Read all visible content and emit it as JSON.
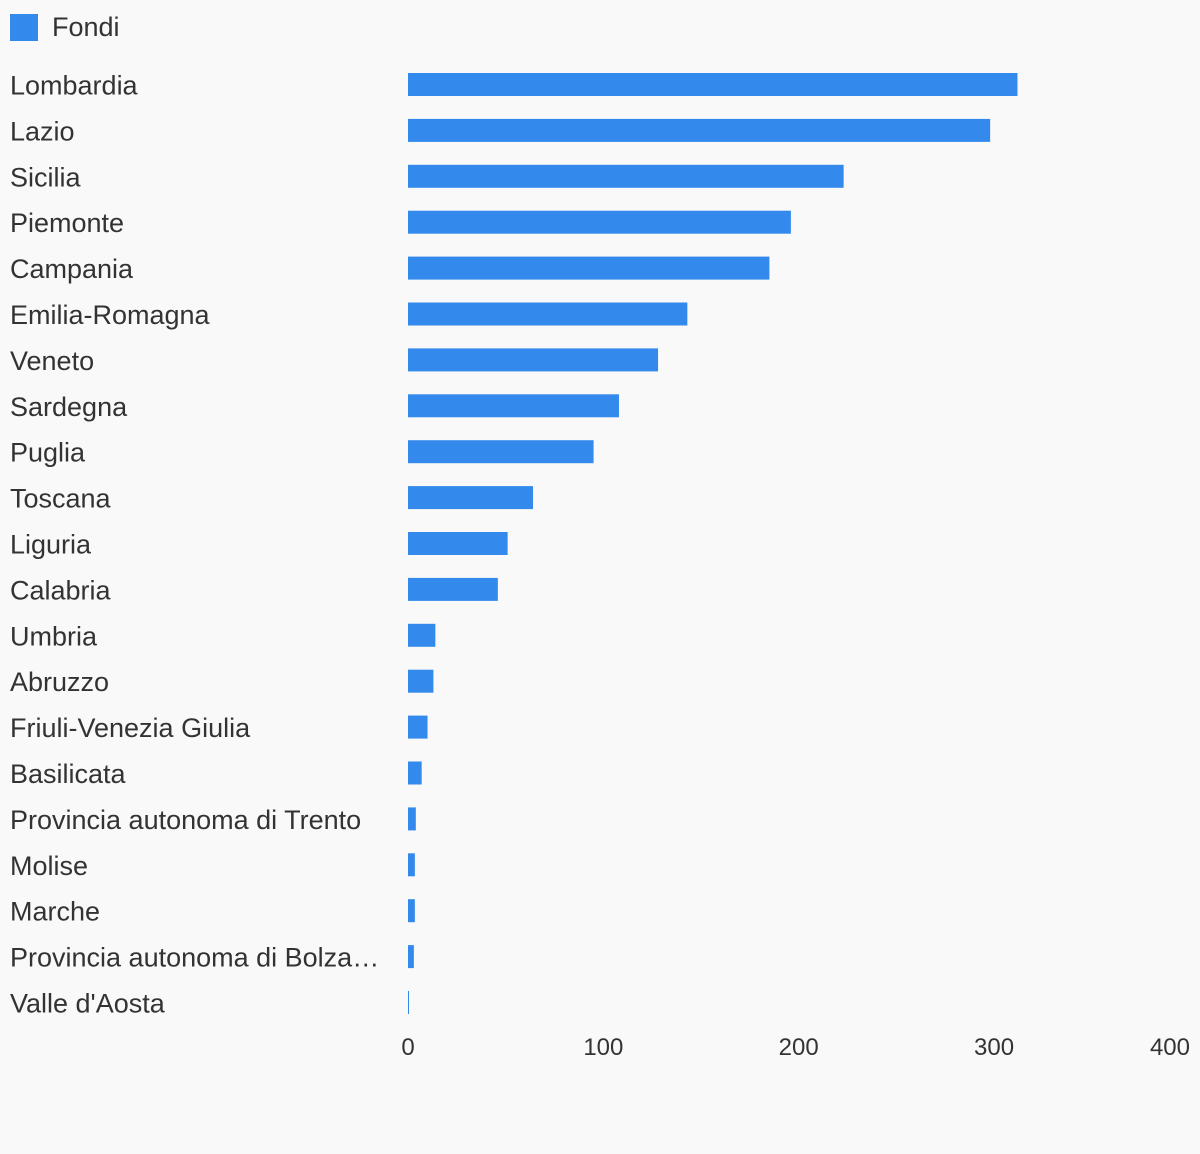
{
  "legend": {
    "label": "Fondi",
    "color": "#348aec"
  },
  "chart_data": {
    "type": "bar",
    "orientation": "horizontal",
    "title": "",
    "xlabel": "",
    "ylabel": "",
    "categories": [
      "Lombardia",
      "Lazio",
      "Sicilia",
      "Piemonte",
      "Campania",
      "Emilia-Romagna",
      "Veneto",
      "Sardegna",
      "Puglia",
      "Toscana",
      "Liguria",
      "Calabria",
      "Umbria",
      "Abruzzo",
      "Friuli-Venezia Giulia",
      "Basilicata",
      "Provincia autonoma di Trento",
      "Molise",
      "Marche",
      "Provincia autonoma di Bolza…",
      "Valle d'Aosta"
    ],
    "series": [
      {
        "name": "Fondi",
        "color": "#348aec",
        "values": [
          312,
          298,
          223,
          196,
          185,
          143,
          128,
          108,
          95,
          64,
          51,
          46,
          14,
          13,
          10,
          7,
          4,
          3.5,
          3.5,
          3,
          0.5
        ]
      }
    ],
    "xlim": [
      0,
      400
    ],
    "ticks": [
      "0",
      "100",
      "200",
      "300",
      "400"
    ],
    "grid": false,
    "legend_position": "top-left"
  }
}
